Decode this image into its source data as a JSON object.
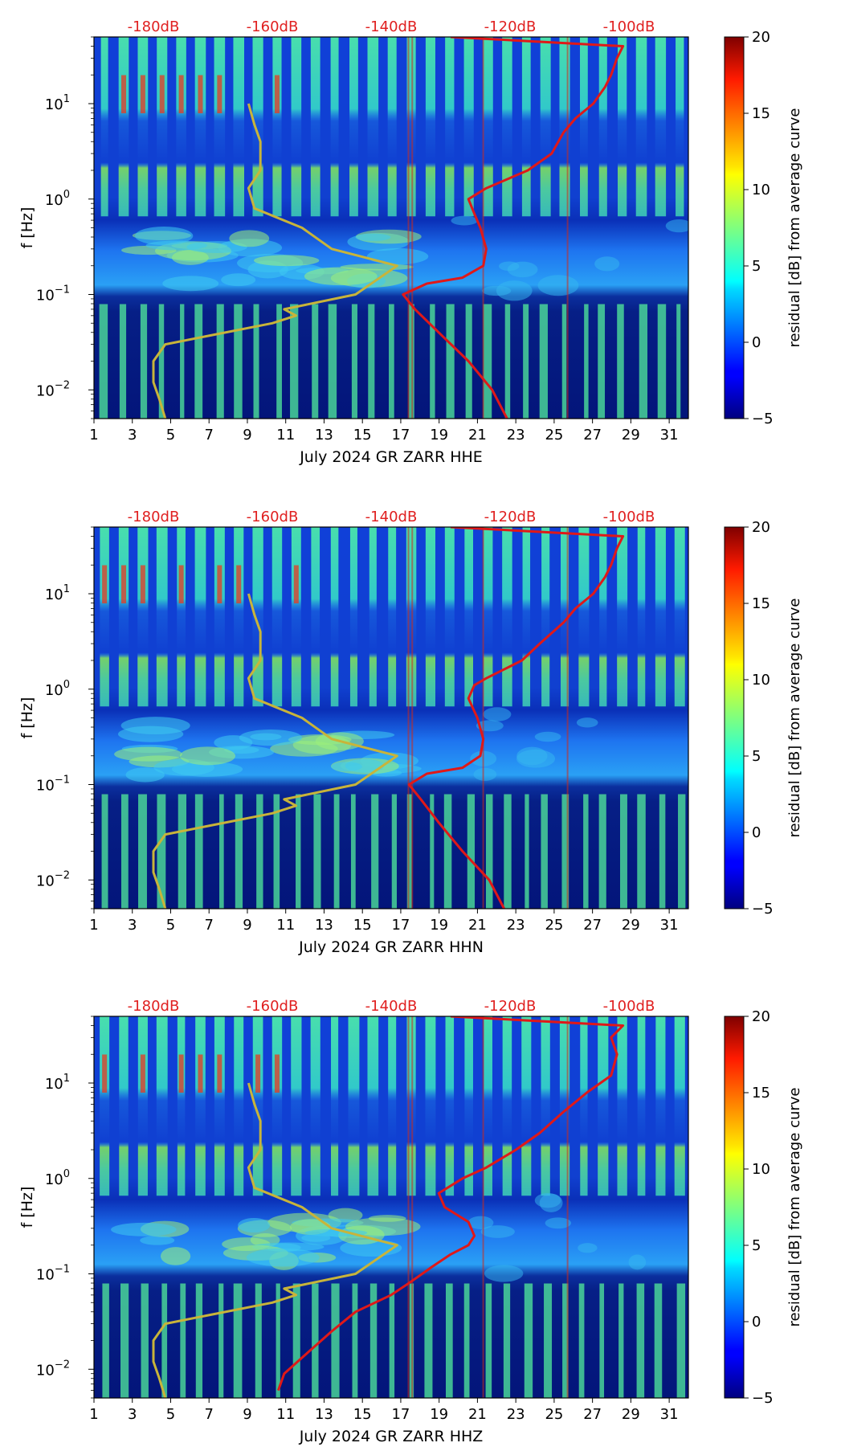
{
  "figure": {
    "common": {
      "ylabel": "f [Hz]",
      "y_range": [
        0.005,
        50
      ],
      "y_ticks": [
        {
          "value": 0.01,
          "base": "10",
          "exp": "−2"
        },
        {
          "value": 0.1,
          "base": "10",
          "exp": "−1"
        },
        {
          "value": 1,
          "base": "10",
          "exp": "0"
        },
        {
          "value": 10,
          "base": "10",
          "exp": "1"
        }
      ],
      "x_range": [
        1,
        32
      ],
      "x_ticks": [
        "1",
        "3",
        "5",
        "7",
        "9",
        "11",
        "13",
        "15",
        "17",
        "19",
        "21",
        "23",
        "25",
        "27",
        "29",
        "31"
      ],
      "db_range": [
        -190,
        -90
      ],
      "db_ticks": [
        "-180dB",
        "-160dB",
        "-140dB",
        "-120dB",
        "-100dB"
      ],
      "colorbar": {
        "label": "residual [dB] from average curve",
        "range": [
          -5,
          20
        ],
        "ticks": [
          "−5",
          "0",
          "5",
          "10",
          "15",
          "20"
        ]
      },
      "colors": {
        "db_label": "#e02020",
        "psd_curve": "#e01818",
        "noise_model": "#c8b43a"
      }
    }
  },
  "chart_data": [
    {
      "type": "heatmap",
      "title": "",
      "xlabel": "July 2024 GR ZARR  HHE",
      "ylabel": "f [Hz]",
      "x_range": [
        1,
        32
      ],
      "y_range": [
        0.005,
        50
      ],
      "colorbar_range": [
        -5,
        20
      ],
      "series": [
        {
          "name": "average PSD (red)",
          "points_db_hz": [
            [
              -120.5,
              0.005
            ],
            [
              -123,
              0.01
            ],
            [
              -127,
              0.02
            ],
            [
              -132,
              0.04
            ],
            [
              -136,
              0.07
            ],
            [
              -138,
              0.1
            ],
            [
              -134,
              0.13
            ],
            [
              -128,
              0.15
            ],
            [
              -124.5,
              0.2
            ],
            [
              -124,
              0.3
            ],
            [
              -125,
              0.5
            ],
            [
              -126,
              0.7
            ],
            [
              -127,
              1.0
            ],
            [
              -124,
              1.3
            ],
            [
              -117,
              2
            ],
            [
              -113,
              3
            ],
            [
              -111,
              5
            ],
            [
              -109,
              7
            ],
            [
              -106,
              10
            ],
            [
              -104,
              15
            ],
            [
              -103,
              20
            ],
            [
              -102,
              30
            ],
            [
              -101,
              40
            ],
            [
              -130,
              50
            ]
          ]
        },
        {
          "name": "noise models (olive)",
          "points_db_hz": [
            [
              -178,
              0.005
            ],
            [
              -179,
              0.008
            ],
            [
              -180,
              0.012
            ],
            [
              -180,
              0.02
            ],
            [
              -178,
              0.03
            ],
            [
              -160,
              0.05
            ],
            [
              -156,
              0.06
            ],
            [
              -158,
              0.07
            ],
            [
              -146,
              0.1
            ],
            [
              -139,
              0.2
            ],
            [
              -150,
              0.3
            ],
            [
              -155,
              0.5
            ],
            [
              -163,
              0.8
            ],
            [
              -164,
              1.3
            ],
            [
              -162,
              2
            ],
            [
              -162,
              4
            ],
            [
              -163,
              6
            ],
            [
              -164,
              10
            ]
          ]
        }
      ]
    },
    {
      "type": "heatmap",
      "title": "",
      "xlabel": "July 2024 GR ZARR  HHN",
      "ylabel": "f [Hz]",
      "x_range": [
        1,
        32
      ],
      "y_range": [
        0.005,
        50
      ],
      "colorbar_range": [
        -5,
        20
      ],
      "series": [
        {
          "name": "average PSD (red)",
          "points_db_hz": [
            [
              -121,
              0.005
            ],
            [
              -123.5,
              0.01
            ],
            [
              -128,
              0.02
            ],
            [
              -132,
              0.04
            ],
            [
              -135,
              0.07
            ],
            [
              -137,
              0.1
            ],
            [
              -134,
              0.13
            ],
            [
              -128,
              0.15
            ],
            [
              -125,
              0.2
            ],
            [
              -124.5,
              0.3
            ],
            [
              -125.5,
              0.5
            ],
            [
              -127,
              0.8
            ],
            [
              -126,
              1.1
            ],
            [
              -124,
              1.3
            ],
            [
              -118,
              2
            ],
            [
              -115,
              3
            ],
            [
              -111,
              5
            ],
            [
              -109,
              7
            ],
            [
              -106,
              10
            ],
            [
              -104,
              15
            ],
            [
              -103,
              20
            ],
            [
              -102,
              30
            ],
            [
              -101,
              40
            ],
            [
              -130,
              50
            ]
          ]
        },
        {
          "name": "noise models (olive)",
          "points_db_hz": [
            [
              -178,
              0.005
            ],
            [
              -179,
              0.008
            ],
            [
              -180,
              0.012
            ],
            [
              -180,
              0.02
            ],
            [
              -178,
              0.03
            ],
            [
              -160,
              0.05
            ],
            [
              -156,
              0.06
            ],
            [
              -158,
              0.07
            ],
            [
              -146,
              0.1
            ],
            [
              -139,
              0.2
            ],
            [
              -150,
              0.3
            ],
            [
              -155,
              0.5
            ],
            [
              -163,
              0.8
            ],
            [
              -164,
              1.3
            ],
            [
              -162,
              2
            ],
            [
              -162,
              4
            ],
            [
              -163,
              6
            ],
            [
              -164,
              10
            ]
          ]
        }
      ]
    },
    {
      "type": "heatmap",
      "title": "",
      "xlabel": "July 2024 GR ZARR  HHZ",
      "ylabel": "f [Hz]",
      "x_range": [
        1,
        32
      ],
      "y_range": [
        0.005,
        50
      ],
      "colorbar_range": [
        -5,
        20
      ],
      "series": [
        {
          "name": "average PSD (red)",
          "points_db_hz": [
            [
              -159,
              0.006
            ],
            [
              -158,
              0.009
            ],
            [
              -154,
              0.015
            ],
            [
              -150,
              0.025
            ],
            [
              -146,
              0.04
            ],
            [
              -140,
              0.06
            ],
            [
              -137,
              0.08
            ],
            [
              -133,
              0.12
            ],
            [
              -130,
              0.16
            ],
            [
              -127,
              0.2
            ],
            [
              -126,
              0.25
            ],
            [
              -127,
              0.35
            ],
            [
              -131,
              0.5
            ],
            [
              -132,
              0.7
            ],
            [
              -128,
              1.0
            ],
            [
              -124,
              1.3
            ],
            [
              -119,
              2
            ],
            [
              -115,
              3
            ],
            [
              -111,
              5
            ],
            [
              -107,
              8
            ],
            [
              -103,
              12
            ],
            [
              -102,
              20
            ],
            [
              -103,
              30
            ],
            [
              -101,
              40
            ],
            [
              -130,
              50
            ]
          ]
        },
        {
          "name": "noise models (olive)",
          "points_db_hz": [
            [
              -178,
              0.005
            ],
            [
              -179,
              0.008
            ],
            [
              -180,
              0.012
            ],
            [
              -180,
              0.02
            ],
            [
              -178,
              0.03
            ],
            [
              -160,
              0.05
            ],
            [
              -156,
              0.06
            ],
            [
              -158,
              0.07
            ],
            [
              -146,
              0.1
            ],
            [
              -139,
              0.2
            ],
            [
              -150,
              0.3
            ],
            [
              -155,
              0.5
            ],
            [
              -163,
              0.8
            ],
            [
              -164,
              1.3
            ],
            [
              -162,
              2
            ],
            [
              -162,
              4
            ],
            [
              -163,
              6
            ],
            [
              -164,
              10
            ]
          ]
        }
      ]
    }
  ]
}
